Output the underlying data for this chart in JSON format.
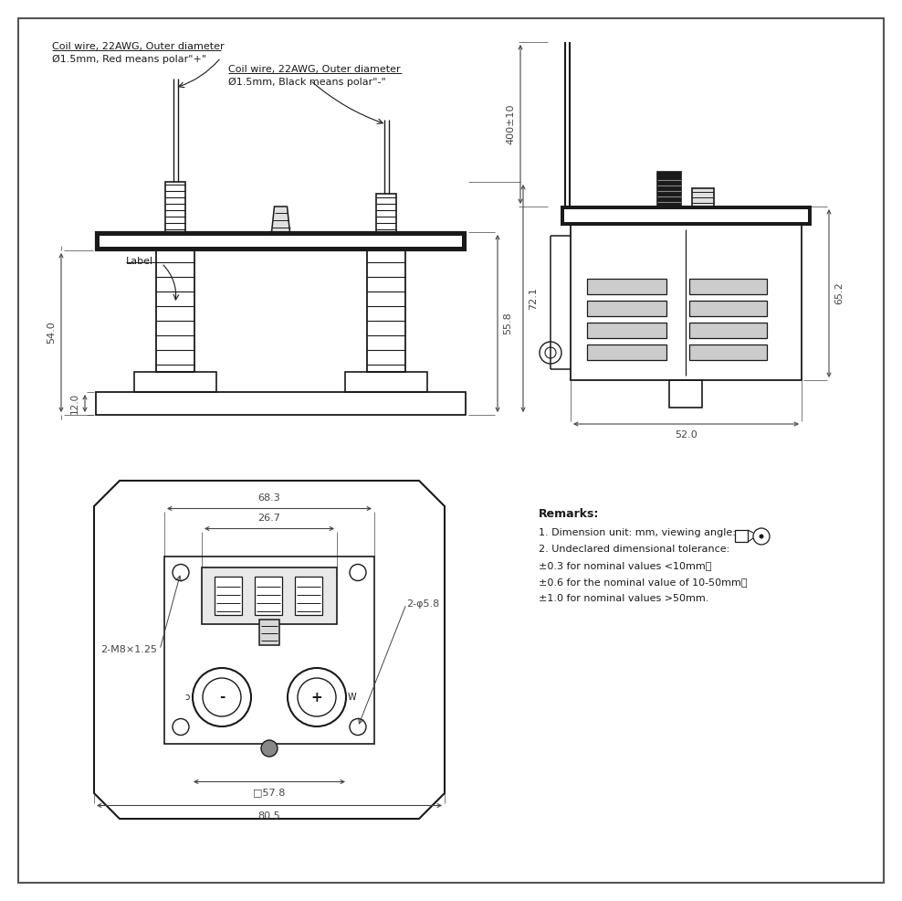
{
  "bg_color": "#ffffff",
  "line_color": "#1a1a1a",
  "dim_color": "#444444",
  "border_color": "#555555",
  "ann_left_1": "Coil wire, 22AWG, Outer diameter",
  "ann_left_2": "Ø1.5mm, Red means polar\"+\"",
  "ann_right_1": "Coil wire, 22AWG, Outer diameter",
  "ann_right_2": "Ø1.5mm, Black means polar\"-\"",
  "label_text": "Label",
  "dim_54": "54.0",
  "dim_12": "12.0",
  "dim_558": "55.8",
  "dim_721": "72.1",
  "dim_400": "400±10",
  "dim_652": "65.2",
  "dim_520": "52.0",
  "dim_683": "68.3",
  "dim_267": "26.7",
  "dim_578": "□57.8",
  "dim_805": "80.5",
  "dim_2m8": "2-M8×1.25",
  "dim_2phi58": "2-φ5.8",
  "remarks_title": "Remarks:",
  "remarks_lines": [
    "1. Dimension unit: mm, viewing angle:",
    "2. Undeclared dimensional tolerance:",
    "±0.3 for nominal values <10mm，",
    "±0.6 for the nominal value of 10-50mm，",
    "±1.0 for nominal values >50mm."
  ]
}
